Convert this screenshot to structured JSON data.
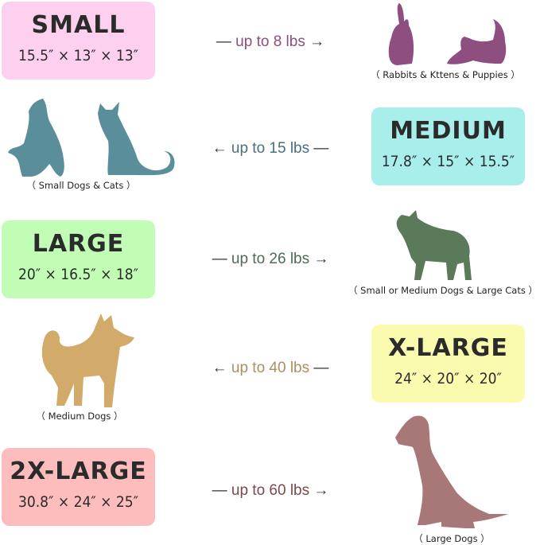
{
  "sizes": [
    {
      "name": "SMALL",
      "dims": "15.5″ × 13″ × 13″",
      "weight": "up to  8  lbs",
      "arrow_left": "—",
      "arrow_right": "→",
      "caption": "（ Rabbits & Kttens & Puppies ）",
      "box_color": "#fdd0ef",
      "text_color": "#8a4f7d",
      "silhouette": "rabbit-and-kitten",
      "silhouette_color": "#8e4f80"
    },
    {
      "name": "MEDIUM",
      "dims": "17.8″ × 15″ × 15.5″",
      "weight": "up to 15 lbs",
      "arrow_left": "←",
      "arrow_right": "—",
      "caption": "（ Small Dogs & Cats ）",
      "box_color": "#a8efeb",
      "text_color": "#4a6f7d",
      "silhouette": "small-dog-and-cat",
      "silhouette_color": "#5a8e9a"
    },
    {
      "name": "LARGE",
      "dims": "20″ × 16.5″ × 18″",
      "weight": "up to 26 lbs",
      "arrow_left": "—",
      "arrow_right": "→",
      "caption": "（ Small or Medium Dogs & Large Cats ）",
      "box_color": "#c2fdb5",
      "text_color": "#4f6a55",
      "silhouette": "bulldog",
      "silhouette_color": "#5b7a5a"
    },
    {
      "name": "X-LARGE",
      "dims": "24″ × 20″ × 20″",
      "weight": "up to 40 lbs",
      "arrow_left": "←",
      "arrow_right": "—",
      "caption": "（ Medium Dogs ）",
      "box_color": "#fbfbb0",
      "text_color": "#a89060",
      "silhouette": "shiba-dog",
      "silhouette_color": "#d2aa6a"
    },
    {
      "name": "2X-LARGE",
      "dims": "30.8″ × 24″ × 25″",
      "weight": "up to 60 lbs",
      "arrow_left": "—",
      "arrow_right": "→",
      "caption": "（ Large Dogs ）",
      "box_color": "#fdbdbd",
      "text_color": "#7a4a4a",
      "silhouette": "sitting-large-dog",
      "silhouette_color": "#a87878"
    }
  ]
}
